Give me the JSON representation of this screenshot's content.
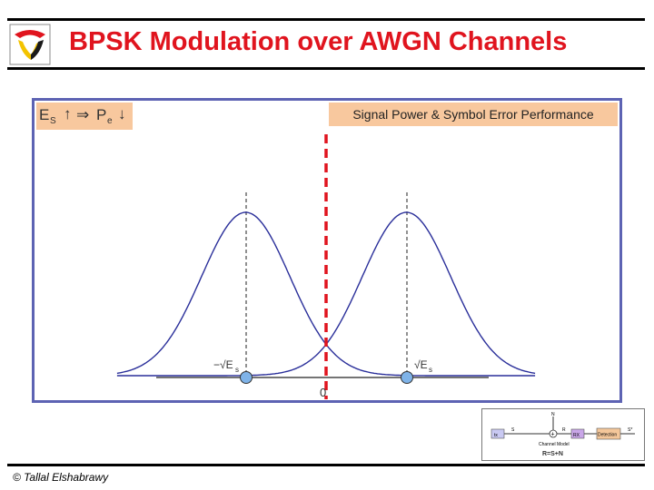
{
  "slide": {
    "title": "BPSK Modulation over AWGN Channels",
    "copyright": "© Tallal Elshabrawy"
  },
  "panel": {
    "formula": {
      "es": "E",
      "es_sub": "S",
      "arrow1": "↑",
      "implies": "⇒",
      "pe": "P",
      "pe_sub": "e",
      "arrow2": "↓"
    },
    "caption": "Signal Power & Symbol Error Performance",
    "origin_label": "0",
    "left_symbol_label": "−√E",
    "left_symbol_sub": "s",
    "right_symbol_label": "√E",
    "right_symbol_sub": "s"
  },
  "chart_data": {
    "type": "line",
    "series": [
      {
        "mean": -1,
        "sigma": 0.55
      },
      {
        "mean": 1,
        "sigma": 0.55
      }
    ],
    "xlim": [
      -2.6,
      2.6
    ],
    "threshold": 0
  },
  "inset": {
    "noise": "N",
    "signal": "S",
    "received": "R",
    "output": "S*",
    "tx": "tx",
    "rx": "RX",
    "detection": "Detection",
    "model_label": "Channel Model",
    "equation": "R=S+N",
    "adder": "+",
    "colors": {
      "tx_fill": "#c9c9f2",
      "rx_fill": "#c9a6e8",
      "det_fill": "#f4c79a"
    }
  },
  "colors": {
    "title": "#e0141e",
    "curve": "#2a2f9a",
    "threshold": "#e0141e",
    "dot": "#7fb3e8",
    "panel_border": "#5d63b3",
    "highlight": "#f8c89e"
  }
}
